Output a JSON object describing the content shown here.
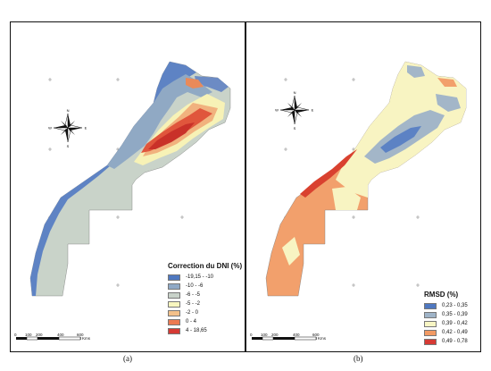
{
  "panel_a": {
    "legend_title": "Correction du DNI (%)",
    "legend_items": [
      {
        "label": "-19,15 - -10",
        "color": "#4f78c0"
      },
      {
        "label": "-10 - -6",
        "color": "#8fa9c6"
      },
      {
        "label": "-6 - -5",
        "color": "#c8d2c9"
      },
      {
        "label": "-5 - -2",
        "color": "#f8f6bf"
      },
      {
        "label": "-2 - 0",
        "color": "#f3c08a"
      },
      {
        "label": "0 - 4",
        "color": "#ec7a52"
      },
      {
        "label": "4 - 18,65",
        "color": "#d63a34"
      }
    ],
    "scale_labels": [
      "0",
      "100",
      "200",
      "400",
      "600"
    ],
    "scale_unit": "Kms",
    "caption": "(a)"
  },
  "panel_b": {
    "legend_title": "RMSD (%)",
    "legend_items": [
      {
        "label": "0,23 - 0,35",
        "color": "#4f78c0"
      },
      {
        "label": "0,35 - 0,39",
        "color": "#9fb4c8"
      },
      {
        "label": "0,39 - 0,42",
        "color": "#f8f6c4"
      },
      {
        "label": "0,42 - 0,49",
        "color": "#f29a64"
      },
      {
        "label": "0,49 - 0,78",
        "color": "#d63a34"
      }
    ],
    "scale_labels": [
      "0",
      "100",
      "200",
      "400",
      "600"
    ],
    "scale_unit": "Kms",
    "caption": "(b)"
  },
  "compass": {
    "n": "N",
    "s": "S",
    "e": "E",
    "w": "W",
    "icon": "north-arrow-icon"
  }
}
